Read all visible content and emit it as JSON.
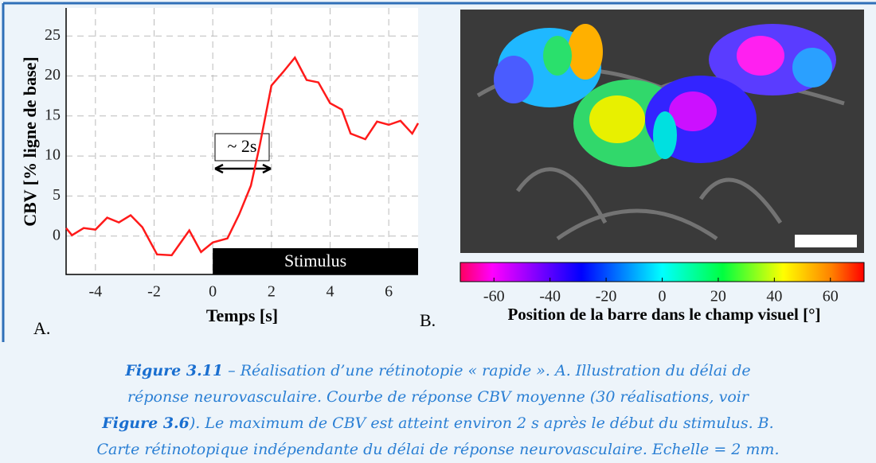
{
  "chart_data": {
    "type": "line",
    "panel_label": "A.",
    "xlabel": "Temps [s]",
    "ylabel": "CBV [% ligne de base]",
    "x": [
      -5.0,
      -4.8,
      -4.4,
      -4.0,
      -3.6,
      -3.2,
      -2.8,
      -2.4,
      -1.9,
      -1.4,
      -0.8,
      -0.4,
      0.0,
      0.5,
      0.9,
      1.3,
      1.6,
      2.0,
      2.4,
      2.8,
      3.2,
      3.6,
      4.0,
      4.4,
      4.7,
      5.2,
      5.6,
      6.0,
      6.4,
      6.8,
      7.0
    ],
    "series": [
      {
        "color": "#ff1a1a",
        "values": [
          1.0,
          0.1,
          1.0,
          0.8,
          2.3,
          1.7,
          2.6,
          1.1,
          -2.3,
          -2.4,
          0.7,
          -2.0,
          -0.8,
          -0.3,
          2.7,
          6.3,
          11.3,
          18.8,
          20.5,
          22.3,
          19.5,
          19.2,
          16.6,
          15.8,
          12.8,
          12.1,
          14.3,
          13.9,
          14.4,
          12.8,
          14.1
        ]
      }
    ],
    "xlim": [
      -5,
      7
    ],
    "ylim": [
      -4.8,
      28.5
    ],
    "xticks": [
      -4,
      -2,
      0,
      2,
      4,
      6
    ],
    "yticks": [
      0,
      5,
      10,
      15,
      20,
      25
    ],
    "grid": true,
    "stimulus": {
      "label": "Stimulus",
      "start": 0
    },
    "annotation": "~ 2s"
  },
  "panel_b": {
    "panel_label": "B.",
    "colorbar": {
      "lim": [
        -72,
        72
      ],
      "ticks": [
        -60,
        -40,
        -20,
        0,
        20,
        40,
        60
      ],
      "label": "Position de la barre dans le champ visuel [°]"
    }
  },
  "caption": {
    "lines": [
      [
        {
          "text": "Figure 3.11",
          "bold": true
        },
        {
          "text": " – Réalisation d’une rétinotopie « rapide ». A. Illustration du délai de",
          "bold": false
        }
      ],
      [
        {
          "text": "réponse neurovasculaire. Courbe de réponse CBV moyenne (30 réalisations, voir",
          "bold": false
        }
      ],
      [
        {
          "text": "Figure 3.6",
          "bold": true
        },
        {
          "text": "). Le maximum de CBV est atteint environ 2 s après le début du stimulus. B.",
          "bold": false
        }
      ],
      [
        {
          "text": "Carte rétinotopique indépendante du délai de réponse neurovasculaire. Echelle = 2 mm.",
          "bold": false
        }
      ]
    ]
  }
}
